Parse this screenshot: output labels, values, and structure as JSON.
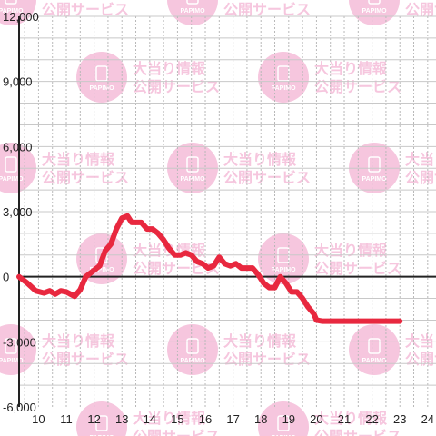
{
  "chart_data": {
    "type": "line",
    "title": "",
    "xlabel": "",
    "ylabel": "",
    "xlim": [
      9.3,
      24.3
    ],
    "ylim": [
      -6000,
      12000
    ],
    "x_ticks": [
      10,
      11,
      12,
      13,
      14,
      15,
      16,
      17,
      18,
      19,
      20,
      21,
      22,
      23,
      24
    ],
    "y_ticks": [
      -6000,
      -3000,
      0,
      3000,
      6000,
      9000,
      12000
    ],
    "y_tick_labels": [
      "-6,000",
      "-3,000",
      "0",
      "3,000",
      "6,000",
      "9,000",
      "12,000"
    ],
    "grid": true,
    "line_color": "#e8283f",
    "series": [
      {
        "x": [
          9.3,
          9.6,
          9.9,
          10.2,
          10.4,
          10.6,
          10.8,
          11.0,
          11.15,
          11.3,
          11.5,
          11.7,
          12.0,
          12.2,
          12.4,
          12.6,
          12.8,
          13.0,
          13.2,
          13.35,
          13.5,
          13.7,
          13.9,
          14.1,
          14.3,
          14.5,
          14.7,
          14.9,
          15.1,
          15.3,
          15.5,
          15.7,
          15.9,
          16.1,
          16.3,
          16.5,
          16.7,
          16.9,
          17.1,
          17.3,
          17.5,
          17.7,
          17.9,
          18.1,
          18.3,
          18.5,
          18.7,
          18.9,
          19.1,
          19.3,
          19.5,
          19.7,
          19.9,
          20.0,
          20.2,
          20.4,
          20.6,
          20.8,
          21.0,
          21.2,
          21.4,
          21.6,
          21.8,
          22.0,
          22.2,
          22.4,
          22.6,
          22.8,
          23.0
        ],
        "y": [
          0,
          -300,
          -650,
          -750,
          -650,
          -800,
          -650,
          -700,
          -800,
          -900,
          -600,
          0,
          300,
          500,
          1200,
          1500,
          2200,
          2700,
          2800,
          2500,
          2500,
          2500,
          2200,
          2200,
          2000,
          1700,
          1300,
          1000,
          1000,
          1100,
          1000,
          700,
          600,
          400,
          500,
          900,
          600,
          500,
          600,
          400,
          400,
          400,
          100,
          -300,
          -500,
          -500,
          0,
          -300,
          -700,
          -700,
          -1000,
          -1400,
          -1700,
          -2000,
          -2050,
          -2050,
          -2050,
          -2050,
          -2050,
          -2050,
          -2050,
          -2050,
          -2050,
          -2050,
          -2050,
          -2050,
          -2050,
          -2050,
          -2050
        ]
      }
    ]
  },
  "watermark": {
    "line1": "大当り情報",
    "line2": "公開サービス",
    "logo_text": "PAPIMO",
    "color": "#f6c6de"
  }
}
